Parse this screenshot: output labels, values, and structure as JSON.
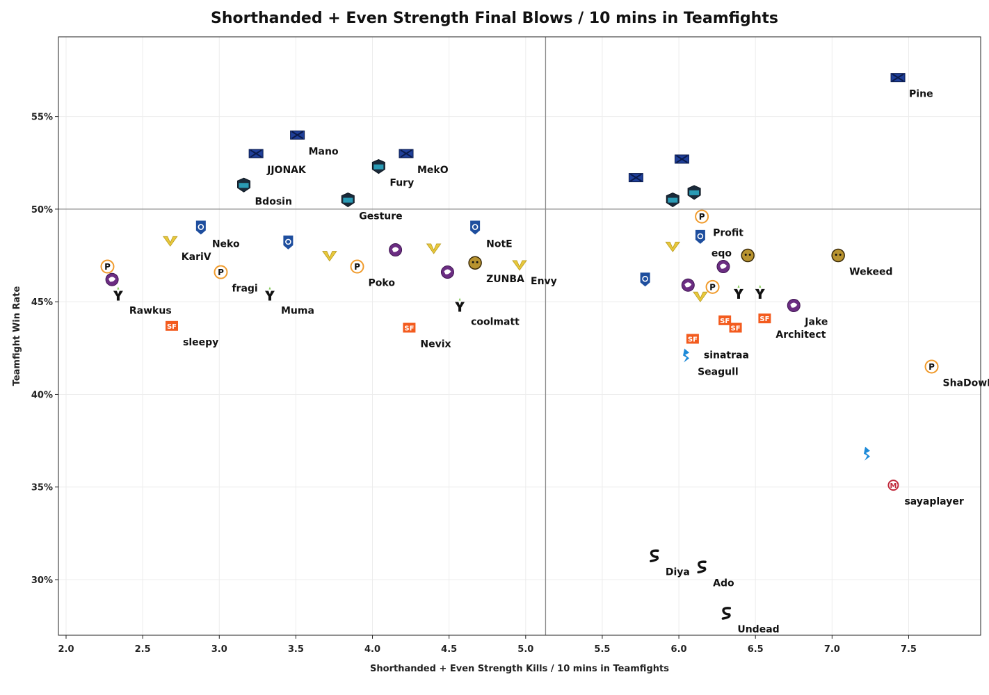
{
  "chart_data": {
    "type": "scatter",
    "title": "Shorthanded + Even Strength Final Blows / 10 mins in Teamfights",
    "xlabel": "Shorthanded + Even Strength Kills / 10 mins in Teamfights",
    "ylabel": "Teamfight Win Rate",
    "xlim": [
      1.95,
      7.97
    ],
    "ylim": [
      27.0,
      59.3
    ],
    "xticks": [
      2.0,
      2.5,
      3.0,
      3.5,
      4.0,
      4.5,
      5.0,
      5.5,
      6.0,
      6.5,
      7.0,
      7.5
    ],
    "xtick_labels": [
      "2.0",
      "2.5",
      "3.0",
      "3.5",
      "4.0",
      "4.5",
      "5.0",
      "5.5",
      "6.0",
      "6.5",
      "7.0",
      "7.5"
    ],
    "yticks": [
      30,
      35,
      40,
      45,
      50,
      55
    ],
    "ytick_labels": [
      "30%",
      "35%",
      "40%",
      "45%",
      "50%",
      "55%"
    ],
    "reference_lines": {
      "x": 5.13,
      "y": 50
    },
    "grid": true,
    "team_colors": {
      "nyxl": "#1f3f99",
      "spitfire": "#2a9bb5",
      "fusion": "#f09b2c",
      "valiant": "#e8c83c",
      "uprising": "#1e4e9e",
      "dragons": "#6b2d82",
      "gladiators": "#ffffff",
      "shock": "#f35b1e",
      "dynasty": "#b8932f",
      "dallas": "#1d8ad8",
      "outlaws": "#111111",
      "mayhem": "#c0283a",
      "spark": "#111111"
    },
    "points": [
      {
        "x": 7.43,
        "y": 57.1,
        "team": "nyxl",
        "label": "Pine"
      },
      {
        "x": 3.51,
        "y": 54.0,
        "team": "nyxl",
        "label": "Mano"
      },
      {
        "x": 3.24,
        "y": 53.0,
        "team": "nyxl",
        "label": "JJONAK"
      },
      {
        "x": 4.22,
        "y": 53.0,
        "team": "nyxl",
        "label": "MekO"
      },
      {
        "x": 4.04,
        "y": 52.3,
        "team": "spitfire",
        "label": "Fury"
      },
      {
        "x": 3.16,
        "y": 51.3,
        "team": "spitfire",
        "label": "Bdosin"
      },
      {
        "x": 3.84,
        "y": 50.5,
        "team": "spitfire",
        "label": "Gesture"
      },
      {
        "x": 6.02,
        "y": 52.7,
        "team": "nyxl",
        "label": ""
      },
      {
        "x": 5.72,
        "y": 51.7,
        "team": "nyxl",
        "label": ""
      },
      {
        "x": 6.1,
        "y": 50.9,
        "team": "spitfire",
        "label": ""
      },
      {
        "x": 5.96,
        "y": 50.5,
        "team": "spitfire",
        "label": ""
      },
      {
        "x": 6.15,
        "y": 49.6,
        "team": "fusion",
        "label": "Profit"
      },
      {
        "x": 6.14,
        "y": 48.5,
        "team": "uprising",
        "label": "eqo"
      },
      {
        "x": 2.88,
        "y": 49.0,
        "team": "uprising",
        "label": "Neko"
      },
      {
        "x": 2.68,
        "y": 48.3,
        "team": "valiant",
        "label": "KariV"
      },
      {
        "x": 3.45,
        "y": 48.2,
        "team": "uprising",
        "label": ""
      },
      {
        "x": 4.67,
        "y": 49.0,
        "team": "uprising",
        "label": "NotE"
      },
      {
        "x": 2.27,
        "y": 46.9,
        "team": "fusion",
        "label": ""
      },
      {
        "x": 2.3,
        "y": 46.2,
        "team": "dragons",
        "label": ""
      },
      {
        "x": 2.34,
        "y": 45.4,
        "team": "gladiators",
        "label": "Rawkus"
      },
      {
        "x": 3.01,
        "y": 46.6,
        "team": "fusion",
        "label": "fragi"
      },
      {
        "x": 3.33,
        "y": 45.4,
        "team": "gladiators",
        "label": "Muma"
      },
      {
        "x": 3.72,
        "y": 47.5,
        "team": "valiant",
        "label": ""
      },
      {
        "x": 3.9,
        "y": 46.9,
        "team": "fusion",
        "label": "Poko"
      },
      {
        "x": 4.15,
        "y": 47.8,
        "team": "dragons",
        "label": ""
      },
      {
        "x": 4.4,
        "y": 47.9,
        "team": "valiant",
        "label": ""
      },
      {
        "x": 4.49,
        "y": 46.6,
        "team": "dragons",
        "label": ""
      },
      {
        "x": 4.67,
        "y": 47.1,
        "team": "dynasty",
        "label": "ZUNBA"
      },
      {
        "x": 4.96,
        "y": 47.0,
        "team": "valiant",
        "label": "Envy"
      },
      {
        "x": 4.57,
        "y": 44.8,
        "team": "gladiators",
        "label": "coolmatt"
      },
      {
        "x": 2.69,
        "y": 43.7,
        "team": "shock",
        "label": "sleepy"
      },
      {
        "x": 4.24,
        "y": 43.6,
        "team": "shock",
        "label": "Nevix"
      },
      {
        "x": 5.96,
        "y": 48.0,
        "team": "valiant",
        "label": ""
      },
      {
        "x": 6.29,
        "y": 46.9,
        "team": "dragons",
        "label": ""
      },
      {
        "x": 6.45,
        "y": 47.5,
        "team": "dynasty",
        "label": ""
      },
      {
        "x": 7.04,
        "y": 47.5,
        "team": "dynasty",
        "label": "Wekeed"
      },
      {
        "x": 5.78,
        "y": 46.2,
        "team": "uprising",
        "label": ""
      },
      {
        "x": 6.06,
        "y": 45.9,
        "team": "dragons",
        "label": ""
      },
      {
        "x": 6.22,
        "y": 45.8,
        "team": "fusion",
        "label": ""
      },
      {
        "x": 6.14,
        "y": 45.3,
        "team": "valiant",
        "label": ""
      },
      {
        "x": 6.39,
        "y": 45.5,
        "team": "gladiators",
        "label": ""
      },
      {
        "x": 6.53,
        "y": 45.5,
        "team": "gladiators",
        "label": ""
      },
      {
        "x": 6.75,
        "y": 44.8,
        "team": "dragons",
        "label": "Jake"
      },
      {
        "x": 6.3,
        "y": 44.0,
        "team": "shock",
        "label": ""
      },
      {
        "x": 6.37,
        "y": 43.6,
        "team": "shock",
        "label": ""
      },
      {
        "x": 6.56,
        "y": 44.1,
        "team": "shock",
        "label": "Architect"
      },
      {
        "x": 6.09,
        "y": 43.0,
        "team": "shock",
        "label": "sinatraa"
      },
      {
        "x": 6.05,
        "y": 42.1,
        "team": "dallas",
        "label": "Seagull"
      },
      {
        "x": 7.65,
        "y": 41.5,
        "team": "fusion",
        "label": "ShaDowBurn"
      },
      {
        "x": 7.23,
        "y": 36.8,
        "team": "dallas",
        "label": ""
      },
      {
        "x": 7.4,
        "y": 35.1,
        "team": "mayhem",
        "label": "sayaplayer"
      },
      {
        "x": 5.84,
        "y": 31.3,
        "team": "spark",
        "label": "Diya"
      },
      {
        "x": 6.15,
        "y": 30.7,
        "team": "spark",
        "label": "Ado"
      },
      {
        "x": 6.31,
        "y": 28.2,
        "team": "spark",
        "label": "Undead"
      }
    ]
  }
}
